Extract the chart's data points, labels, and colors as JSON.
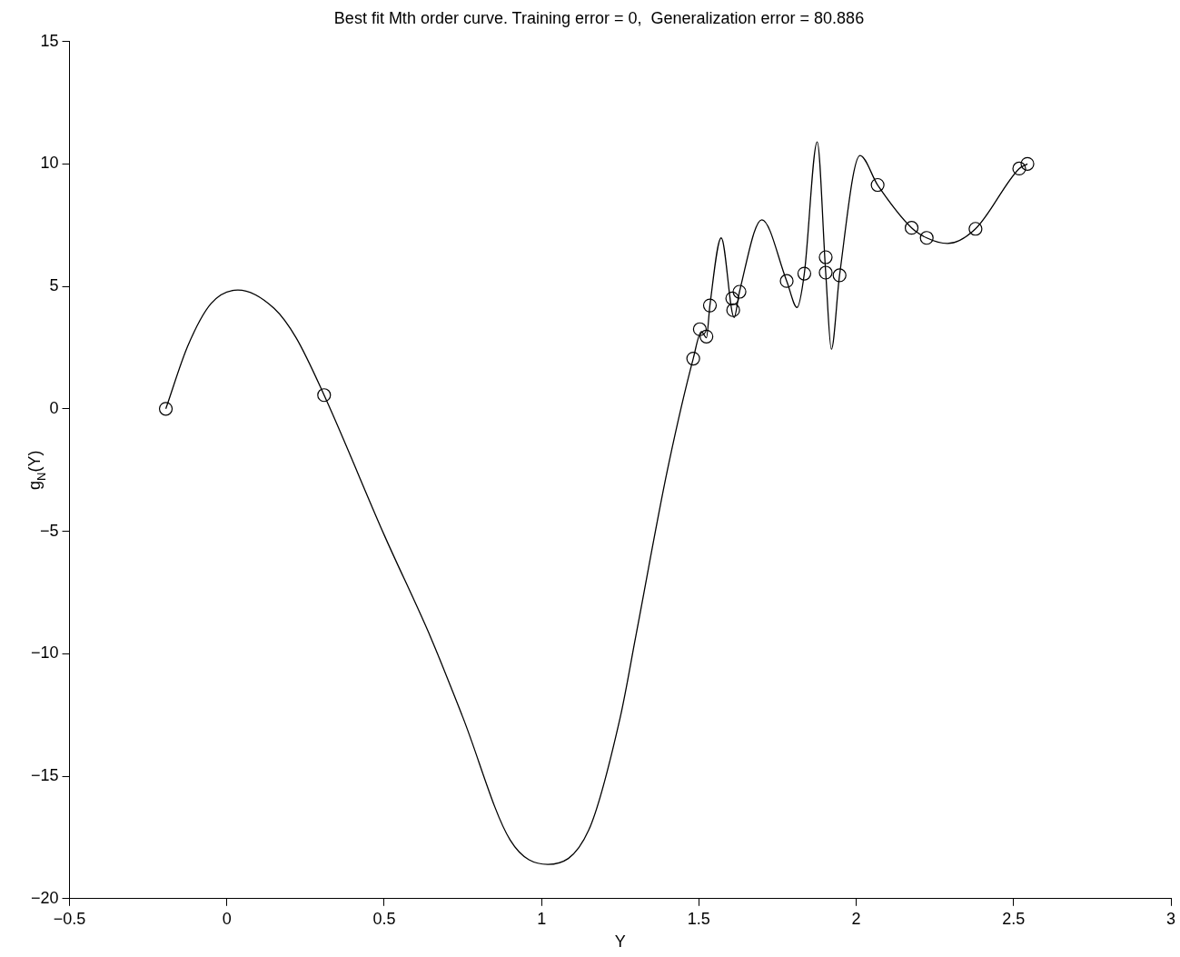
{
  "chart_data": {
    "type": "line",
    "title": "Best fit Mth order curve. Training error = 0,  Generalization error = 80.886",
    "xlabel": "Y",
    "ylabel": "g$_{N}$(Y)",
    "xlim": [
      -0.5,
      3
    ],
    "ylim": [
      -20,
      15
    ],
    "xticks": [
      {
        "value": -0.5,
        "label": "−0.5"
      },
      0,
      0.5,
      1,
      1.5,
      2,
      2.5,
      3
    ],
    "yticks": [
      {
        "value": -20,
        "label": "−20"
      },
      {
        "value": -15,
        "label": "−15"
      },
      {
        "value": -10,
        "label": "−10"
      },
      {
        "value": -5,
        "label": "−5"
      },
      0,
      5,
      10,
      15
    ],
    "grid": false,
    "legend": false,
    "series": [
      {
        "color": "#000000",
        "marker": "none",
        "line_style": "solid",
        "x": [
          -0.194,
          -0.124,
          -0.05,
          0.035,
          0.15,
          0.22,
          0.309,
          0.5,
          0.65,
          0.75,
          0.9,
          1.02,
          1.15,
          1.25,
          1.3,
          1.4,
          1.482,
          1.508,
          1.524,
          1.535,
          1.571,
          1.612,
          1.629,
          1.7,
          1.779,
          1.812,
          1.835,
          1.876,
          1.903,
          1.921,
          1.947,
          2.012,
          2.068,
          2.176,
          2.224,
          2.29,
          2.379,
          2.518,
          2.544
        ],
        "values": [
          0,
          2.57,
          4.3,
          4.85,
          4.1,
          2.9,
          0.56,
          -5.15,
          -9.4,
          -12.6,
          -17.6,
          -18.6,
          -17.2,
          -12.6,
          -9.25,
          -2.5,
          2.05,
          3.15,
          2.9,
          4.22,
          6.98,
          3.73,
          4.78,
          7.72,
          5.22,
          4.14,
          5.52,
          10.9,
          5.56,
          2.43,
          5.45,
          10.34,
          9.14,
          7.39,
          6.98,
          6.75,
          7.35,
          9.81,
          10.0
        ]
      },
      {
        "type": "scatter",
        "color": "#000000",
        "marker": "circle",
        "x": [
          -0.194,
          0.309,
          1.482,
          1.503,
          1.524,
          1.535,
          1.606,
          1.609,
          1.629,
          1.779,
          1.835,
          1.903,
          1.903,
          1.947,
          2.068,
          2.176,
          2.224,
          2.379,
          2.518,
          2.544
        ],
        "values": [
          0,
          0.56,
          2.05,
          3.25,
          2.95,
          4.22,
          4.51,
          4.03,
          4.78,
          5.22,
          5.52,
          6.19,
          5.56,
          5.45,
          9.14,
          7.39,
          6.98,
          7.35,
          9.81,
          10.0
        ]
      }
    ]
  }
}
